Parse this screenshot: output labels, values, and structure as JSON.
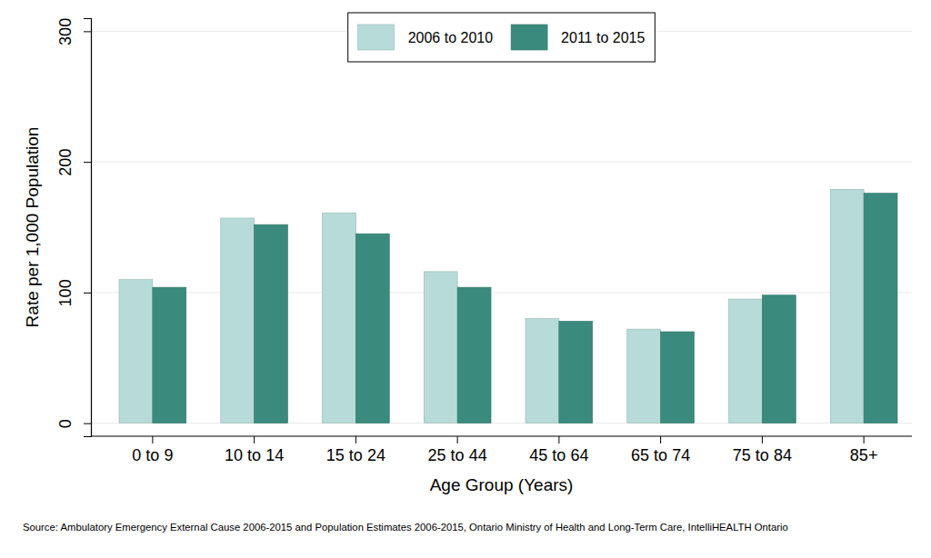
{
  "chart_data": {
    "type": "bar",
    "x_label": "Age Group (Years)",
    "y_label": "Rate per 1,000 Population",
    "source": "Source: Ambulatory Emergency External Cause 2006-2015 and Population Estimates 2006-2015, Ontario Ministry of Health and Long-Term Care, IntelliHEALTH Ontario",
    "categories": [
      "0 to 9",
      "10 to 14",
      "15 to 24",
      "25 to 44",
      "45 to 64",
      "65 to 74",
      "75 to 84",
      "85+"
    ],
    "series": [
      {
        "name": "2006 to 2010",
        "color": "#b6dbd8",
        "values": [
          110,
          157,
          161,
          116,
          80,
          72,
          95,
          179
        ]
      },
      {
        "name": "2011 to 2015",
        "color": "#3a8b7d",
        "values": [
          104,
          152,
          145,
          104,
          78,
          70,
          98,
          176
        ]
      }
    ],
    "ylim": [
      -10,
      310
    ],
    "yticks": [
      0,
      100,
      200,
      300
    ],
    "grid": true,
    "legend": "top"
  }
}
